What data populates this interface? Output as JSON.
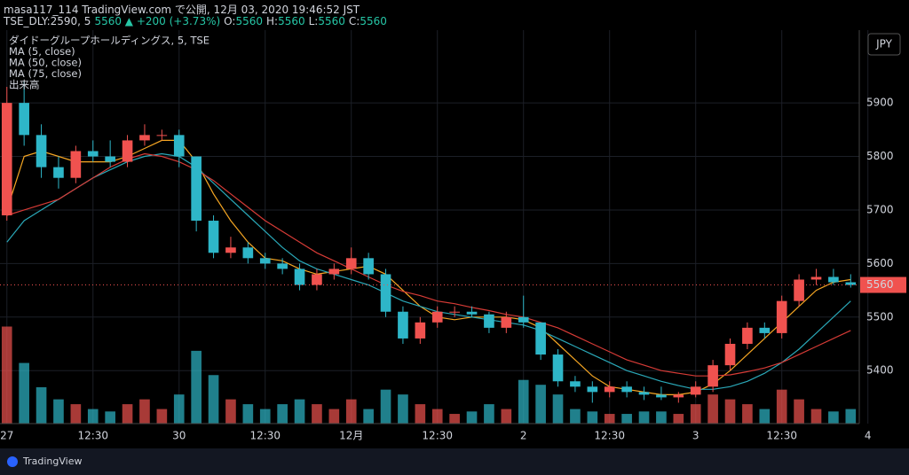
{
  "header": {
    "title": "masa117_114 TradingView.com で公開, 12月 03, 2020 19:46:52 JST",
    "segments": [
      {
        "text": "TSE_DLY:2590, 5",
        "color": "#d1d4dc"
      },
      {
        "text": "5560 ▲ +200 (+3.73%)",
        "color": "#26c6a6"
      },
      {
        "text": "O:",
        "color": "#d1d4dc"
      },
      {
        "text": "5560",
        "color": "#26c6a6"
      },
      {
        "text": "H:",
        "color": "#d1d4dc"
      },
      {
        "text": "5560",
        "color": "#26c6a6"
      },
      {
        "text": "L:",
        "color": "#d1d4dc"
      },
      {
        "text": "5560",
        "color": "#26c6a6"
      },
      {
        "text": "C:",
        "color": "#d1d4dc"
      },
      {
        "text": "5560",
        "color": "#26c6a6"
      }
    ]
  },
  "legend": [
    "ダイドーグループホールディングス, 5, TSE",
    "MA (5, close)",
    "MA (50, close)",
    "MA (75, close)",
    "出来高"
  ],
  "currency": "JPY",
  "footer": "TradingView",
  "chart_data": {
    "type": "candlestick",
    "up_color": "#f0524f",
    "down_color": "#2eb6c8",
    "xlim": [
      -0.4,
      49.5
    ],
    "xticks": [
      {
        "value": 0,
        "label": "27"
      },
      {
        "value": 5,
        "label": "12:30"
      },
      {
        "value": 10,
        "label": "30"
      },
      {
        "value": 15,
        "label": "12:30"
      },
      {
        "value": 20,
        "label": "12月"
      },
      {
        "value": 25,
        "label": "12:30"
      },
      {
        "value": 30,
        "label": "2"
      },
      {
        "value": 35,
        "label": "12:30"
      },
      {
        "value": 40,
        "label": "3"
      },
      {
        "value": 45,
        "label": "12:30"
      },
      {
        "value": 50,
        "label": "4"
      }
    ],
    "ylim": [
      5301,
      6026
    ],
    "yticks": [
      5400,
      5500,
      5600,
      5700,
      5800,
      5900
    ],
    "grid": true,
    "last_price": 5560,
    "open": [
      5690,
      5900,
      5840,
      5780,
      5760,
      5810,
      5800,
      5790,
      5830,
      5840,
      5840,
      5800,
      5680,
      5620,
      5630,
      5610,
      5600,
      5590,
      5560,
      5580,
      5590,
      5610,
      5580,
      5510,
      5460,
      5490,
      5510,
      5510,
      5505,
      5480,
      5500,
      5490,
      5430,
      5380,
      5370,
      5360,
      5370,
      5360,
      5355,
      5350,
      5355,
      5370,
      5410,
      5450,
      5480,
      5470,
      5530,
      5570,
      5575,
      5565
    ],
    "high": [
      5930,
      5940,
      5860,
      5800,
      5820,
      5830,
      5830,
      5840,
      5860,
      5850,
      5850,
      5800,
      5690,
      5650,
      5640,
      5620,
      5610,
      5600,
      5590,
      5600,
      5630,
      5620,
      5590,
      5520,
      5500,
      5520,
      5520,
      5520,
      5510,
      5510,
      5540,
      5490,
      5440,
      5390,
      5380,
      5380,
      5380,
      5370,
      5370,
      5360,
      5380,
      5420,
      5460,
      5490,
      5490,
      5540,
      5580,
      5590,
      5590,
      5580
    ],
    "low": [
      5680,
      5820,
      5760,
      5740,
      5750,
      5790,
      5780,
      5780,
      5820,
      5830,
      5780,
      5660,
      5610,
      5610,
      5600,
      5590,
      5580,
      5550,
      5550,
      5570,
      5580,
      5570,
      5500,
      5450,
      5450,
      5480,
      5500,
      5500,
      5470,
      5470,
      5480,
      5420,
      5370,
      5360,
      5340,
      5350,
      5350,
      5345,
      5345,
      5340,
      5350,
      5360,
      5400,
      5440,
      5460,
      5460,
      5520,
      5560,
      5560,
      5555
    ],
    "close": [
      5900,
      5840,
      5780,
      5760,
      5810,
      5800,
      5790,
      5830,
      5840,
      5840,
      5800,
      5680,
      5620,
      5630,
      5610,
      5600,
      5590,
      5560,
      5580,
      5590,
      5610,
      5580,
      5510,
      5460,
      5490,
      5510,
      5510,
      5505,
      5480,
      5500,
      5490,
      5430,
      5380,
      5370,
      5360,
      5370,
      5360,
      5355,
      5350,
      5355,
      5370,
      5410,
      5450,
      5480,
      5470,
      5530,
      5570,
      5575,
      5565,
      5560
    ],
    "series": [
      {
        "name": "MA (5, close)",
        "color": "#f5a623",
        "values": [
          5700,
          5800,
          5810,
          5800,
          5790,
          5790,
          5790,
          5800,
          5815,
          5830,
          5830,
          5790,
          5730,
          5680,
          5640,
          5610,
          5605,
          5590,
          5580,
          5585,
          5590,
          5595,
          5580,
          5550,
          5520,
          5500,
          5495,
          5500,
          5500,
          5500,
          5495,
          5480,
          5450,
          5420,
          5390,
          5370,
          5365,
          5360,
          5355,
          5355,
          5360,
          5375,
          5400,
          5430,
          5460,
          5490,
          5520,
          5550,
          5565,
          5570
        ]
      },
      {
        "name": "MA (50, close)",
        "color": "#2aa8b8",
        "values": [
          5640,
          5680,
          5700,
          5720,
          5740,
          5760,
          5775,
          5790,
          5800,
          5805,
          5800,
          5780,
          5750,
          5720,
          5690,
          5660,
          5630,
          5605,
          5590,
          5580,
          5570,
          5560,
          5545,
          5530,
          5520,
          5510,
          5505,
          5500,
          5495,
          5490,
          5485,
          5475,
          5460,
          5445,
          5430,
          5415,
          5400,
          5390,
          5380,
          5372,
          5365,
          5365,
          5370,
          5380,
          5395,
          5415,
          5440,
          5470,
          5500,
          5530
        ]
      },
      {
        "name": "MA (75, close)",
        "color": "#d63b36",
        "values": [
          5690,
          5700,
          5710,
          5720,
          5740,
          5760,
          5780,
          5795,
          5805,
          5800,
          5790,
          5775,
          5755,
          5730,
          5705,
          5680,
          5660,
          5640,
          5620,
          5605,
          5590,
          5575,
          5560,
          5548,
          5540,
          5530,
          5525,
          5518,
          5512,
          5505,
          5500,
          5490,
          5480,
          5465,
          5450,
          5435,
          5420,
          5410,
          5400,
          5395,
          5390,
          5390,
          5392,
          5398,
          5405,
          5415,
          5430,
          5445,
          5460,
          5475
        ]
      }
    ],
    "volume": [
      40,
      25,
      15,
      10,
      8,
      6,
      5,
      8,
      10,
      6,
      12,
      30,
      20,
      10,
      8,
      6,
      8,
      10,
      8,
      6,
      10,
      6,
      14,
      12,
      8,
      6,
      4,
      5,
      8,
      6,
      18,
      16,
      12,
      6,
      5,
      4,
      4,
      5,
      5,
      4,
      8,
      12,
      10,
      8,
      6,
      14,
      10,
      6,
      5,
      6
    ],
    "volume_lim": [
      0,
      160
    ]
  }
}
